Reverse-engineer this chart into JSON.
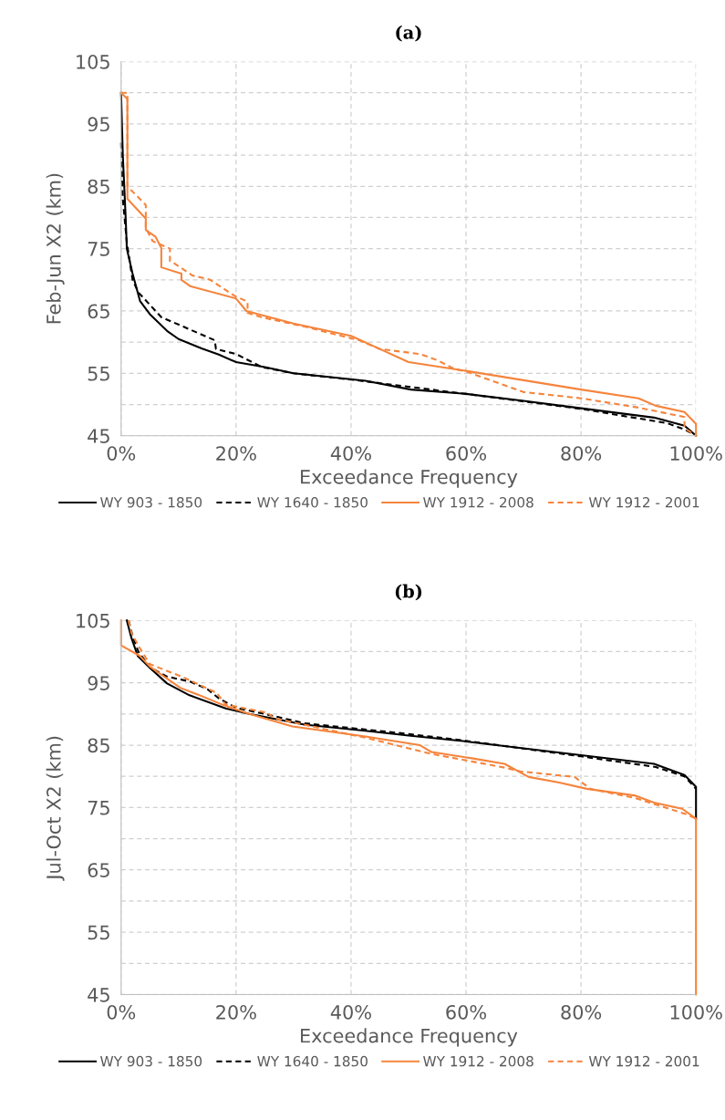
{
  "chart_data": [
    {
      "type": "line",
      "title": "(a)",
      "xlabel": "Exceedance Frequency",
      "ylabel": "Feb-Jun X2 (km)",
      "xlim": [
        0,
        100
      ],
      "xticks": [
        {
          "value": 0,
          "label": "0%"
        },
        {
          "value": 20,
          "label": "20%"
        },
        {
          "value": 40,
          "label": "40%"
        },
        {
          "value": 60,
          "label": "60%"
        },
        {
          "value": 80,
          "label": "80%"
        },
        {
          "value": 100,
          "label": "100%"
        }
      ],
      "ylim": [
        45,
        105
      ],
      "yticks": [
        45,
        {
          "value": 50,
          "label": null
        },
        55,
        {
          "value": 60,
          "label": null
        },
        65,
        {
          "value": 70,
          "label": null
        },
        75,
        {
          "value": 80,
          "label": null
        },
        85,
        {
          "value": 90,
          "label": null
        },
        95,
        {
          "value": 100,
          "label": null
        },
        105
      ],
      "grid": true,
      "legend": "bottom",
      "marker": "none",
      "series": [
        {
          "name": "WY 903 - 1850",
          "color": "#000000",
          "line_style": "solid",
          "x": [
            0,
            0.3,
            0.8,
            1,
            2,
            3.3,
            5,
            8,
            10,
            14,
            17,
            20,
            25,
            30,
            42.5,
            50.4,
            60,
            70,
            80,
            92.7,
            98,
            100
          ],
          "values": [
            100,
            90,
            80,
            75,
            71,
            66.6,
            64.5,
            61.8,
            60.5,
            59,
            58,
            56.8,
            56,
            55,
            53.8,
            52.4,
            51.7,
            50.6,
            49.4,
            47.9,
            46.6,
            45
          ]
        },
        {
          "name": "WY 1640 - 1850",
          "color": "#000000",
          "line_style": "dashed",
          "x": [
            0,
            0.3,
            1,
            2,
            3,
            5,
            7,
            10.8,
            16.3,
            16.5,
            20,
            24.5,
            30,
            40,
            60,
            80,
            95,
            98,
            100
          ],
          "values": [
            92,
            83,
            76,
            70,
            68,
            66,
            64,
            62.5,
            60.3,
            58.9,
            58.1,
            56,
            55,
            54,
            51.7,
            49.3,
            47,
            46,
            45
          ]
        },
        {
          "name": "WY 1912 - 2008",
          "color": "#f5843c",
          "line_style": "solid",
          "x": [
            0,
            1.1,
            1.1,
            4.3,
            4.3,
            6,
            7,
            7,
            10.5,
            10.5,
            12,
            20,
            21.8,
            30,
            40,
            45,
            50,
            60,
            80,
            90,
            93,
            98,
            100,
            100
          ],
          "values": [
            100,
            99,
            83,
            79.8,
            78,
            76.9,
            75.1,
            72,
            71,
            70,
            69,
            67,
            65,
            63,
            61,
            58.9,
            56.8,
            55.4,
            52.4,
            51,
            49.8,
            48.8,
            46.9,
            45
          ]
        },
        {
          "name": "WY 1912 - 2001",
          "color": "#f5843c",
          "line_style": "dashed",
          "x": [
            0,
            1.1,
            1.1,
            4.3,
            4.3,
            5.5,
            8.5,
            8.5,
            9,
            12.4,
            15.5,
            19.8,
            22,
            22,
            24.4,
            31.9,
            41.4,
            45,
            52,
            55,
            58,
            60,
            70,
            80,
            90,
            98,
            98,
            100
          ],
          "values": [
            100,
            100,
            85,
            82,
            78.3,
            76.2,
            75,
            73,
            72.8,
            70.7,
            70,
            67.4,
            66.5,
            64.7,
            64,
            62.5,
            60.3,
            58.9,
            58.1,
            57.1,
            55.7,
            55.3,
            52,
            51,
            49.5,
            48,
            46.2,
            45
          ]
        }
      ]
    },
    {
      "type": "line",
      "title": "(b)",
      "xlabel": "Exceedance Frequency",
      "ylabel": "Jul-Oct X2 (km)",
      "xlim": [
        0,
        100
      ],
      "xticks": [
        {
          "value": 0,
          "label": "0%"
        },
        {
          "value": 20,
          "label": "20%"
        },
        {
          "value": 40,
          "label": "40%"
        },
        {
          "value": 60,
          "label": "60%"
        },
        {
          "value": 80,
          "label": "80%"
        },
        {
          "value": 100,
          "label": "100%"
        }
      ],
      "ylim": [
        45,
        105
      ],
      "yticks": [
        45,
        {
          "value": 50,
          "label": null
        },
        55,
        {
          "value": 60,
          "label": null
        },
        65,
        {
          "value": 70,
          "label": null
        },
        75,
        {
          "value": 80,
          "label": null
        },
        85,
        {
          "value": 90,
          "label": null
        },
        95,
        {
          "value": 100,
          "label": null
        },
        105
      ],
      "grid": true,
      "legend": "bottom",
      "marker": "none",
      "series": [
        {
          "name": "WY 903 - 1850",
          "color": "#000000",
          "line_style": "solid",
          "x": [
            1,
            1.8,
            2.9,
            5,
            8,
            11.9,
            18.2,
            22.3,
            31.9,
            42.5,
            50.4,
            60,
            80,
            92.7,
            98,
            100,
            100
          ],
          "values": [
            105,
            102.2,
            99.3,
            97.4,
            94.9,
            93,
            90.9,
            90,
            88.3,
            87.3,
            86.5,
            85.6,
            83.4,
            82,
            80.2,
            78.3,
            73.2
          ]
        },
        {
          "name": "WY 1640 - 1850",
          "color": "#000000",
          "line_style": "dashed",
          "x": [
            1.3,
            2,
            3,
            5,
            8,
            12,
            15,
            17,
            20,
            25,
            32,
            50,
            60,
            80,
            93,
            98,
            100
          ],
          "values": [
            105,
            102.5,
            100,
            97.5,
            96,
            95.2,
            94,
            92.5,
            91,
            90,
            88.5,
            86.8,
            85.7,
            83.2,
            81.5,
            80,
            78
          ]
        },
        {
          "name": "WY 1912 - 2008",
          "color": "#f5843c",
          "line_style": "solid",
          "x": [
            0,
            0,
            3.3,
            5,
            10.3,
            13.4,
            17.6,
            22.3,
            29.8,
            42.5,
            52,
            54,
            61,
            66.7,
            70.9,
            76.2,
            81,
            89.5,
            92.7,
            97.6,
            100,
            100
          ],
          "values": [
            105,
            101,
            99.3,
            97.6,
            94.2,
            93.1,
            91.5,
            90,
            88,
            86.4,
            85,
            83.9,
            82.9,
            82,
            79.9,
            79,
            78,
            76.9,
            75.8,
            74.8,
            73.2,
            45
          ]
        },
        {
          "name": "WY 1912 - 2001",
          "color": "#f5843c",
          "line_style": "dashed",
          "x": [
            1.3,
            1.8,
            3.3,
            5,
            10.8,
            16.6,
            18.2,
            25.5,
            26.6,
            42.5,
            54,
            66.7,
            69.4,
            78.9,
            81.6,
            89.5,
            98.4,
            100
          ],
          "values": [
            105,
            103,
            100.5,
            98,
            95.9,
            93.4,
            91.5,
            90.2,
            89.3,
            86.2,
            83.6,
            81.4,
            80.8,
            79.9,
            78,
            76.5,
            73.9,
            73.2
          ]
        }
      ]
    }
  ]
}
